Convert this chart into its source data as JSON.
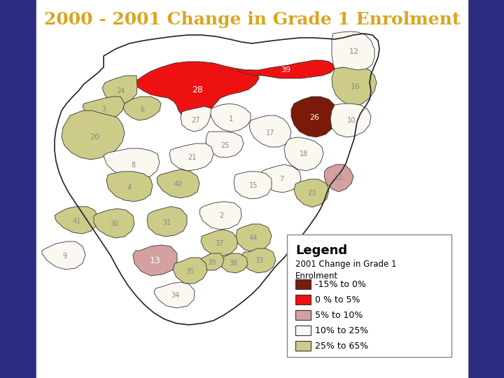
{
  "title": "2000 - 2001 Change in Grade 1 Enrolment",
  "title_color": "#DAA520",
  "title_fontsize": 18,
  "legend_title": "Legend",
  "legend_subtitle": "2001 Change in Grade 1\nEnrolment",
  "legend_items": [
    {
      "label": "-15% to 0%",
      "color": "#7B1A0A"
    },
    {
      "label": "0 % to 5%",
      "color": "#EE1111"
    },
    {
      "label": "5% to 10%",
      "color": "#D4A0A0"
    },
    {
      "label": "10% to 25%",
      "color": "#FAF8F0"
    },
    {
      "label": "25% to 65%",
      "color": "#CCCC88"
    }
  ],
  "colors": {
    "dark_red": "#7B1A0A",
    "red": "#EE1111",
    "pink": "#D4A0A0",
    "cream": "#FAF8F0",
    "yellow_green": "#CCCC88"
  },
  "left_panel_color": "#2B2B7F",
  "right_panel_color": "#2B2B7F",
  "fig_bg": "#FFFFFF"
}
